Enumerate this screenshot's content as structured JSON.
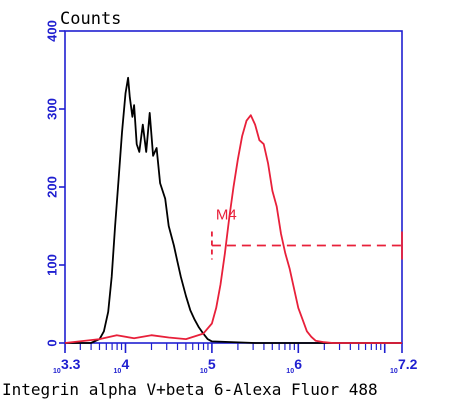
{
  "chart_data": {
    "type": "line",
    "ylabel": "Counts",
    "xlabel": "Integrin alpha V+beta 6-Alexa Fluor 488",
    "x_scale": "log10",
    "xlim": [
      3.3,
      7.2
    ],
    "ylim": [
      0,
      400
    ],
    "y_ticks": [
      "0",
      "100",
      "200",
      "300",
      "400"
    ],
    "x_tick_labels": [
      {
        "base": "10",
        "exp": "3.3",
        "value": 3.3
      },
      {
        "base": "10",
        "exp": "4",
        "value": 4
      },
      {
        "base": "10",
        "exp": "5",
        "value": 5
      },
      {
        "base": "10",
        "exp": "6",
        "value": 6
      },
      {
        "base": "10",
        "exp": "7.2",
        "value": 7.2
      }
    ],
    "grid": false,
    "colors": {
      "axis": "#1f1fd0",
      "control": "#000000",
      "sample": "#e8203a"
    },
    "series": [
      {
        "color": "#000000",
        "x": [
          3.3,
          3.6,
          3.7,
          3.75,
          3.8,
          3.84,
          3.88,
          3.92,
          3.96,
          4.0,
          4.03,
          4.05,
          4.08,
          4.1,
          4.13,
          4.16,
          4.2,
          4.24,
          4.28,
          4.32,
          4.36,
          4.4,
          4.46,
          4.5,
          4.56,
          4.6,
          4.64,
          4.7,
          4.75,
          4.8,
          4.85,
          4.9,
          4.95,
          5.0,
          5.5,
          6.0,
          7.2
        ],
        "values": [
          0,
          0,
          5,
          15,
          40,
          85,
          150,
          210,
          270,
          320,
          340,
          315,
          290,
          305,
          255,
          245,
          280,
          245,
          295,
          240,
          250,
          205,
          185,
          150,
          125,
          105,
          85,
          60,
          42,
          30,
          20,
          12,
          5,
          2,
          0,
          0,
          0
        ]
      },
      {
        "color": "#e8203a",
        "x": [
          3.3,
          3.7,
          3.9,
          4.1,
          4.3,
          4.5,
          4.7,
          4.9,
          5.0,
          5.05,
          5.1,
          5.15,
          5.2,
          5.25,
          5.3,
          5.35,
          5.4,
          5.45,
          5.5,
          5.55,
          5.6,
          5.65,
          5.7,
          5.75,
          5.8,
          5.85,
          5.9,
          5.95,
          6.0,
          6.05,
          6.1,
          6.15,
          6.2,
          6.3,
          6.4,
          7.2
        ],
        "values": [
          0,
          5,
          10,
          6,
          10,
          7,
          5,
          12,
          25,
          45,
          75,
          115,
          160,
          200,
          235,
          265,
          285,
          292,
          280,
          260,
          255,
          230,
          195,
          175,
          140,
          115,
          95,
          70,
          45,
          30,
          15,
          8,
          3,
          1,
          0,
          0
        ]
      }
    ],
    "annotations": [
      {
        "label": "M4",
        "x_start": 5.0,
        "x_end": 7.2,
        "y": 125,
        "color": "#e8203a"
      }
    ]
  }
}
